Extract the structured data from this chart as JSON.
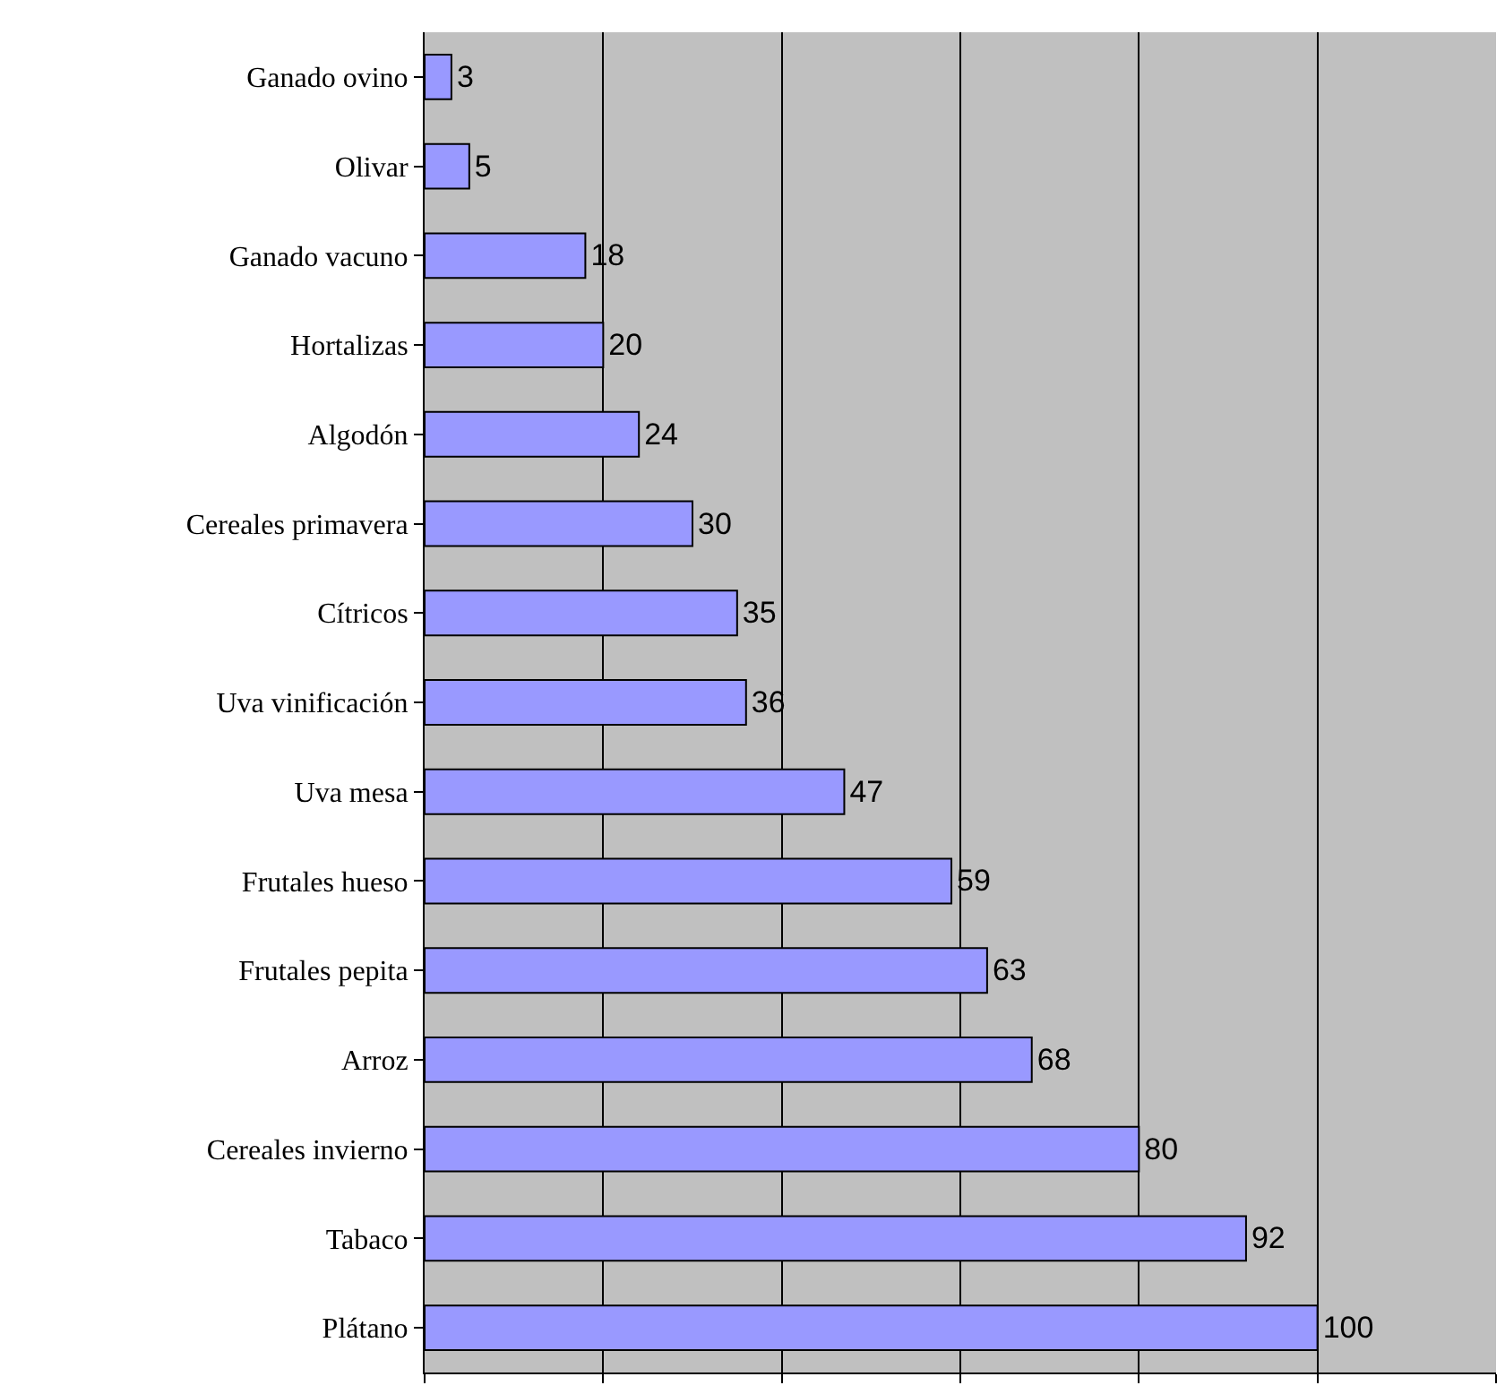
{
  "chart_data": {
    "type": "bar",
    "orientation": "horizontal",
    "categories": [
      "Ganado ovino",
      "Olivar",
      "Ganado vacuno",
      "Hortalizas",
      "Algodón",
      "Cereales primavera",
      "Cítricos",
      "Uva vinificación",
      "Uva mesa",
      "Frutales hueso",
      "Frutales pepita",
      "Arroz",
      "Cereales invierno",
      "Tabaco",
      "Plátano"
    ],
    "values": [
      3,
      5,
      18,
      20,
      24,
      30,
      35,
      36,
      47,
      59,
      63,
      68,
      80,
      92,
      100
    ],
    "color": "#9999ff",
    "xlim": [
      0,
      120
    ],
    "xticks": [
      {
        "value": 0,
        "label": null
      },
      {
        "value": 20,
        "label": null
      },
      {
        "value": 40,
        "label": null
      },
      {
        "value": 60,
        "label": null
      },
      {
        "value": 80,
        "label": null
      },
      {
        "value": 100,
        "label": null
      },
      {
        "value": 120,
        "label": null
      }
    ],
    "tick_labels": "y",
    "grid": "x",
    "data_labels": true,
    "legend": false
  }
}
